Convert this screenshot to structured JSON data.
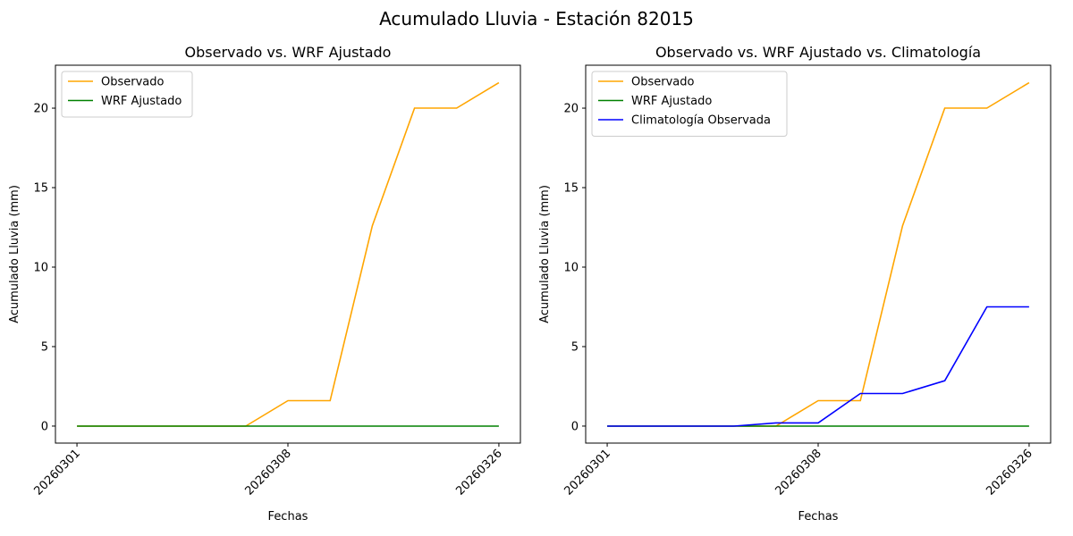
{
  "suptitle": "Acumulado Lluvia - Estación 82015",
  "chart_data": [
    {
      "type": "line",
      "title": "Observado vs. WRF Ajustado",
      "xlabel": "Fechas",
      "ylabel": "Acumulado Lluvia (mm)",
      "x_index": [
        0,
        1,
        2,
        3,
        4,
        5,
        6,
        7,
        8,
        9,
        10
      ],
      "xticks": [
        {
          "index": 0,
          "label": "20260301"
        },
        {
          "index": 5,
          "label": "20260308"
        },
        {
          "index": 10,
          "label": "20260326"
        }
      ],
      "yticks": [
        0,
        5,
        10,
        15,
        20
      ],
      "ylim": [
        -1.07,
        22.7
      ],
      "xlim": [
        -0.51,
        10.51
      ],
      "legend_position": "upper-left",
      "series": [
        {
          "name": "Observado",
          "color": "#ffa500",
          "values": [
            0,
            0,
            0,
            0,
            0,
            1.6,
            1.6,
            12.6,
            20,
            20,
            21.6
          ]
        },
        {
          "name": "WRF Ajustado",
          "color": "#008000",
          "values": [
            0,
            0,
            0,
            0,
            0,
            0,
            0,
            0,
            0,
            0,
            0
          ]
        }
      ]
    },
    {
      "type": "line",
      "title": "Observado vs. WRF Ajustado vs. Climatología",
      "xlabel": "Fechas",
      "ylabel": "Acumulado Lluvia (mm)",
      "x_index": [
        0,
        1,
        2,
        3,
        4,
        5,
        6,
        7,
        8,
        9,
        10
      ],
      "xticks": [
        {
          "index": 0,
          "label": "20260301"
        },
        {
          "index": 5,
          "label": "20260308"
        },
        {
          "index": 10,
          "label": "20260326"
        }
      ],
      "yticks": [
        0,
        5,
        10,
        15,
        20
      ],
      "ylim": [
        -1.07,
        22.7
      ],
      "xlim": [
        -0.51,
        10.51
      ],
      "legend_position": "upper-left",
      "series": [
        {
          "name": "Observado",
          "color": "#ffa500",
          "values": [
            0,
            0,
            0,
            0,
            0,
            1.6,
            1.6,
            12.6,
            20,
            20,
            21.6
          ]
        },
        {
          "name": "WRF Ajustado",
          "color": "#008000",
          "values": [
            0,
            0,
            0,
            0,
            0,
            0,
            0,
            0,
            0,
            0,
            0
          ]
        },
        {
          "name": "Climatología Observada",
          "color": "#0000ff",
          "values": [
            0,
            0,
            0,
            0,
            0.2,
            0.2,
            2.05,
            2.05,
            2.85,
            7.5,
            7.5
          ]
        }
      ]
    }
  ]
}
